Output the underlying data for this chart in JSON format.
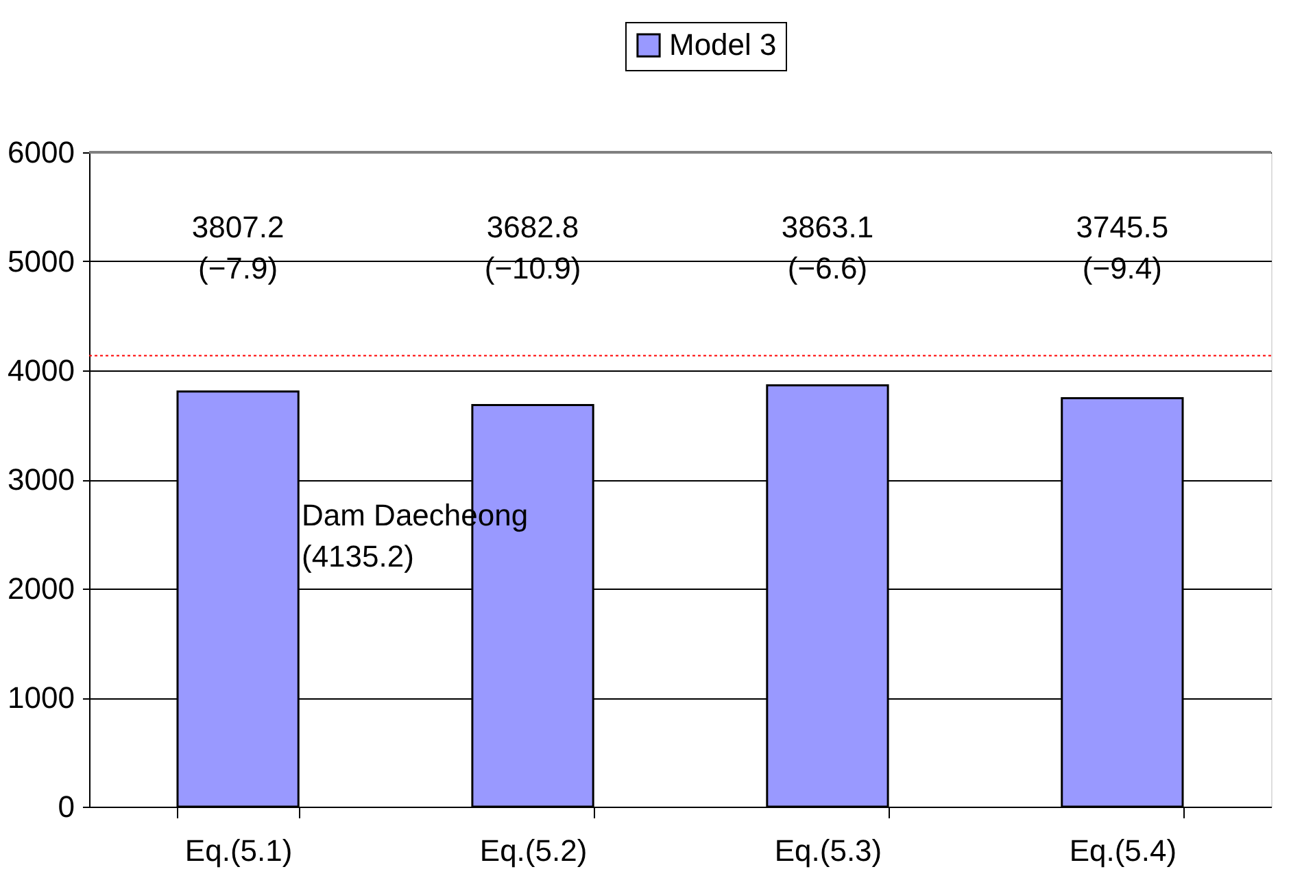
{
  "chart_data": {
    "type": "bar",
    "categories": [
      "Eq.(5.1)",
      "Eq.(5.2)",
      "Eq.(5.3)",
      "Eq.(5.4)"
    ],
    "series": [
      {
        "name": "Model 3",
        "color": "#9999ff",
        "values": [
          3807.2,
          3682.8,
          3863.1,
          3745.5
        ]
      }
    ],
    "value_labels": [
      "3807.2\n(−7.9)",
      "3682.8\n(−10.9)",
      "3863.1\n(−6.6)",
      "3745.5\n(−9.4)"
    ],
    "ref_lines": [
      {
        "axis": "y",
        "value": 4135.2,
        "color": "#ff0000",
        "line_style": "dotted"
      }
    ],
    "annotations": [
      "Dam Daecheong\n(4135.2)"
    ],
    "ylim": [
      0,
      6000
    ],
    "yticks": [
      0,
      1000,
      2000,
      3000,
      4000,
      5000,
      6000
    ],
    "grid": "y",
    "legend": "top"
  }
}
